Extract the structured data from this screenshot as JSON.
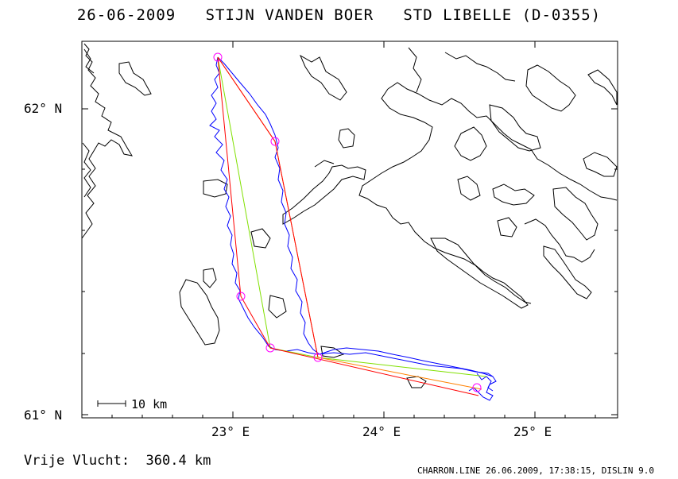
{
  "header": {
    "title": "26-06-2009   STIJN VANDEN BOER   STD LIBELLE (D-0355)"
  },
  "map": {
    "lat_labels": [
      "62° N",
      "61° N"
    ],
    "lon_labels": [
      "23° E",
      "24° E",
      "25° E"
    ],
    "scale_label": "10 km",
    "colors": {
      "coast": "#000000",
      "track": "#0000ff",
      "task_red": "#ff0000",
      "task_green": "#80e000",
      "task_orange": "#ff8000",
      "turnpoint": "#ff00ff"
    }
  },
  "footer": {
    "distance": "Vrije Vlucht:  360.4 km",
    "credit": "CHARRON.LINE 26.06.2009, 17:38:15, DISLIN 9.0"
  }
}
